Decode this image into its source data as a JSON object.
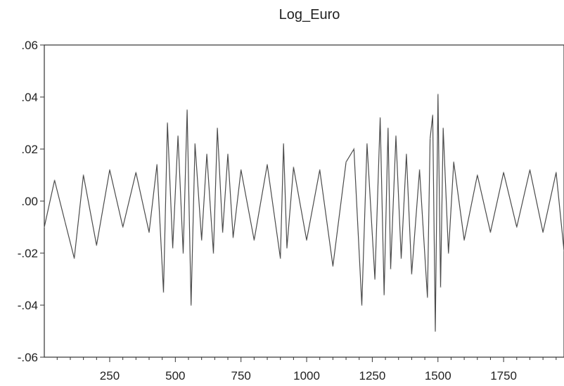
{
  "chart_data": {
    "type": "line",
    "title": "Log_Euro",
    "xlabel": "",
    "ylabel": "",
    "xlim": [
      1,
      1980
    ],
    "ylim": [
      -0.06,
      0.06
    ],
    "x_ticks": [
      250,
      500,
      750,
      1000,
      1250,
      1500,
      1750
    ],
    "x_tick_labels": [
      "250",
      "500",
      "750",
      "1000",
      "1250",
      "1500",
      "1750"
    ],
    "y_ticks": [
      0.06,
      0.04,
      0.02,
      0.0,
      -0.02,
      -0.04,
      -0.06
    ],
    "y_tick_labels": [
      ".06",
      ".04",
      ".02",
      ".00",
      "-.02",
      "-.04",
      "-.06"
    ],
    "grid": false,
    "legend": "none",
    "colors": {
      "line": "#4a4a4a",
      "core": "#8a8a8a",
      "axis": "#333333"
    },
    "series": [
      {
        "x": [
          1,
          40,
          80,
          115,
          150,
          200,
          250,
          300,
          350,
          400,
          430,
          455,
          470,
          490,
          510,
          530,
          545,
          560,
          575,
          600,
          620,
          645,
          660,
          680,
          700,
          720,
          750,
          800,
          850,
          900,
          912,
          925,
          950,
          1000,
          1050,
          1100,
          1150,
          1180,
          1210,
          1230,
          1260,
          1280,
          1295,
          1310,
          1320,
          1340,
          1360,
          1380,
          1400,
          1430,
          1460,
          1470,
          1480,
          1490,
          1500,
          1510,
          1520,
          1540,
          1560,
          1600,
          1650,
          1700,
          1750,
          1800,
          1850,
          1900,
          1950,
          1980
        ],
        "y": [
          -0.01,
          0.008,
          -0.008,
          -0.022,
          0.01,
          -0.017,
          0.012,
          -0.01,
          0.011,
          -0.012,
          0.014,
          -0.035,
          0.03,
          -0.018,
          0.025,
          -0.02,
          0.035,
          -0.04,
          0.022,
          -0.015,
          0.018,
          -0.02,
          0.028,
          -0.012,
          0.018,
          -0.014,
          0.012,
          -0.015,
          0.014,
          -0.022,
          0.022,
          -0.018,
          0.013,
          -0.015,
          0.012,
          -0.025,
          0.015,
          0.02,
          -0.04,
          0.022,
          -0.03,
          0.032,
          -0.036,
          0.028,
          -0.026,
          0.025,
          -0.022,
          0.018,
          -0.028,
          0.012,
          -0.037,
          0.024,
          0.033,
          -0.05,
          0.041,
          -0.033,
          0.028,
          -0.02,
          0.015,
          -0.015,
          0.01,
          -0.012,
          0.011,
          -0.01,
          0.012,
          -0.012,
          0.011,
          -0.019
        ]
      }
    ]
  }
}
